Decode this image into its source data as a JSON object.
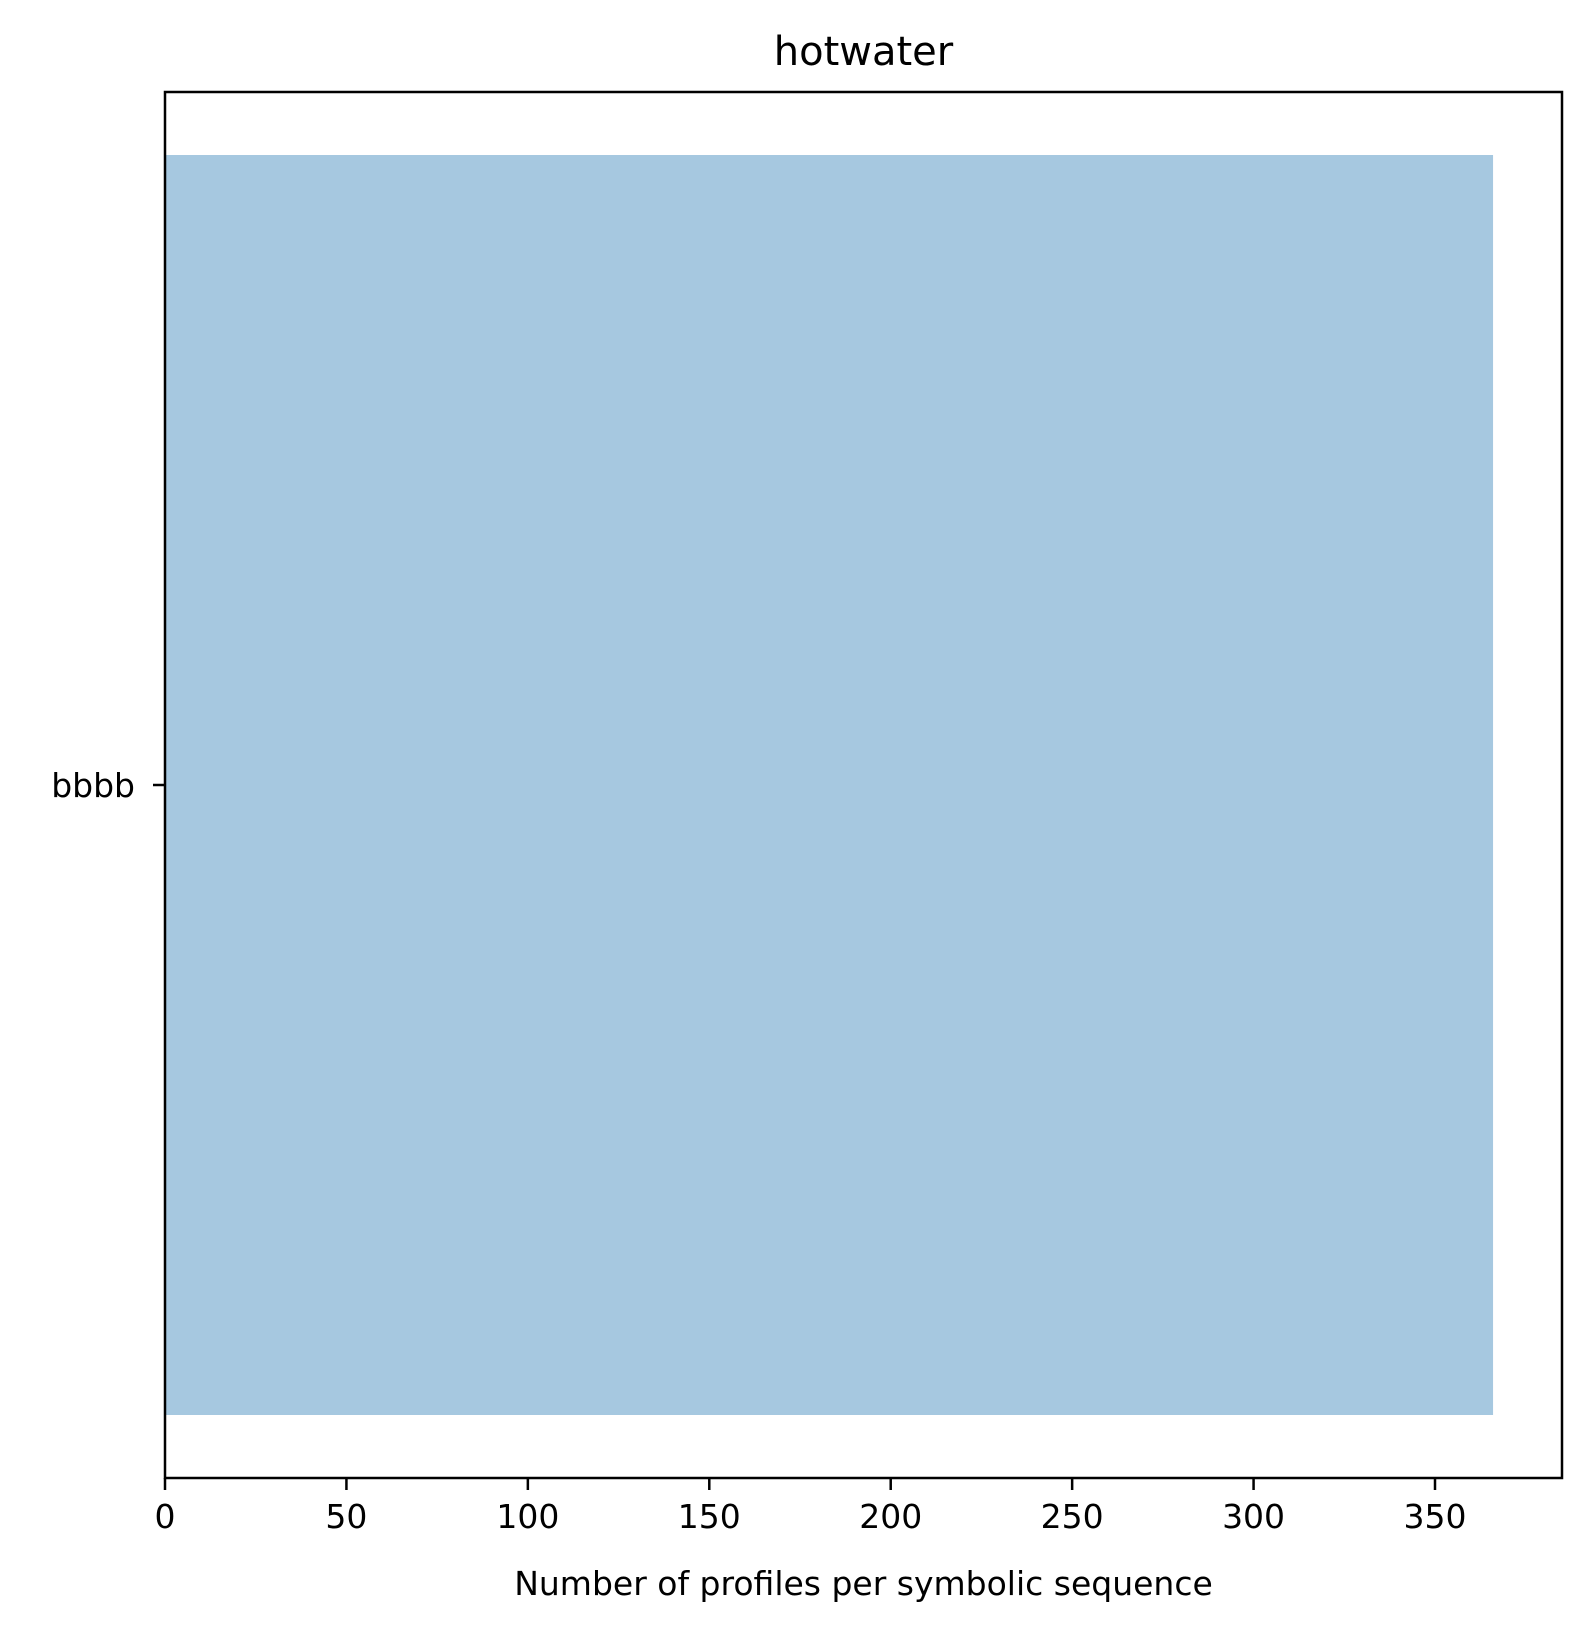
{
  "chart_data": {
    "type": "bar",
    "orientation": "horizontal",
    "title": "hotwater",
    "xlabel": "Number of profiles per symbolic sequence",
    "ylabel": "",
    "categories": [
      "bbbb"
    ],
    "values": [
      366
    ],
    "xlim": [
      0,
      385
    ],
    "xticks": [
      0,
      50,
      100,
      150,
      200,
      250,
      300,
      350
    ],
    "grid": false,
    "legend": "none",
    "bar_color": "#a6c8e0"
  }
}
